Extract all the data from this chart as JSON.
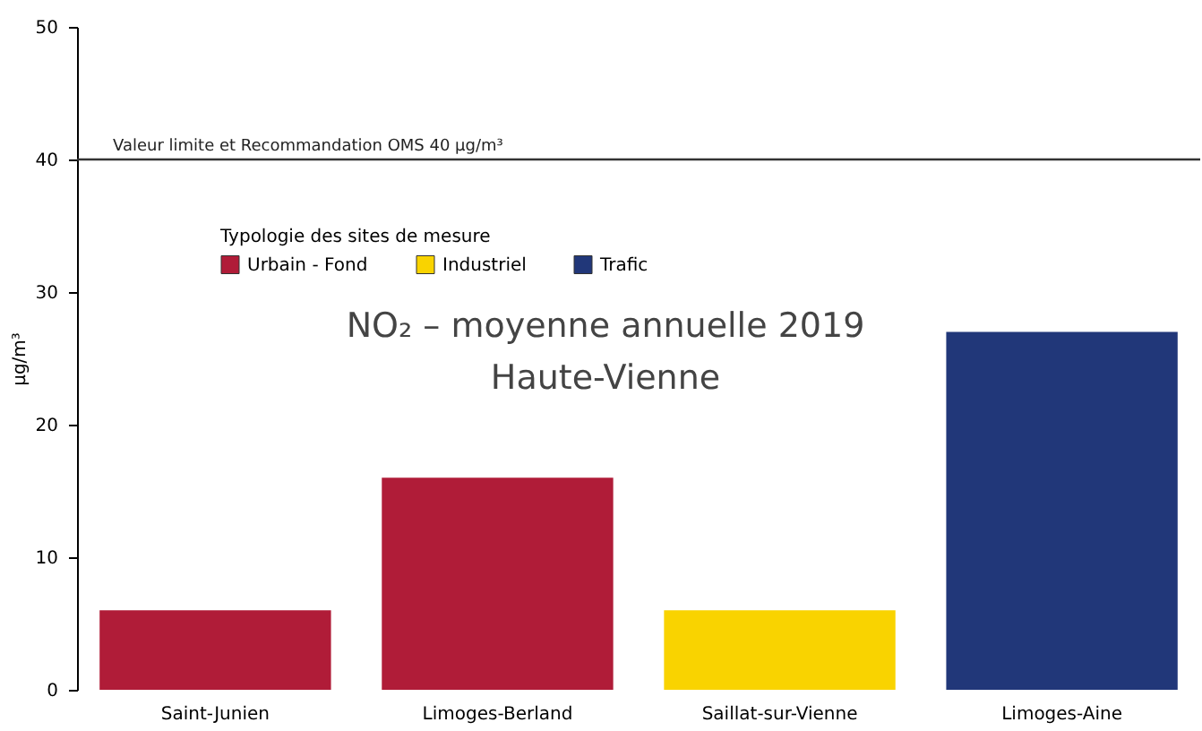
{
  "chart_data": {
    "type": "bar",
    "title": "NO₂ – moyenne annuelle 2019",
    "subtitle": "Haute-Vienne",
    "ylabel": "µg/m³",
    "legend_title": "Typologie des sites de mesure",
    "categories": [
      "Saint-Junien",
      "Limoges-Berland",
      "Saillat-sur-Vienne",
      "Limoges-Aine"
    ],
    "series": [
      {
        "name": "Urbain - Fond",
        "color": "#b01c38",
        "values": [
          6,
          16,
          null,
          null
        ]
      },
      {
        "name": "Industriel",
        "color": "#f9d300",
        "values": [
          null,
          null,
          6,
          null
        ]
      },
      {
        "name": "Trafic",
        "color": "#213779",
        "values": [
          null,
          null,
          null,
          27
        ]
      }
    ],
    "ylim": [
      0,
      50
    ],
    "yticks": [
      0,
      10,
      20,
      30,
      40,
      50
    ],
    "grid": false,
    "legend": "top left",
    "ref_lines": [
      {
        "axis": "y",
        "value": 40,
        "label": "Valeur limite et Recommandation OMS 40 µg/m³",
        "color": "#333333"
      }
    ]
  }
}
